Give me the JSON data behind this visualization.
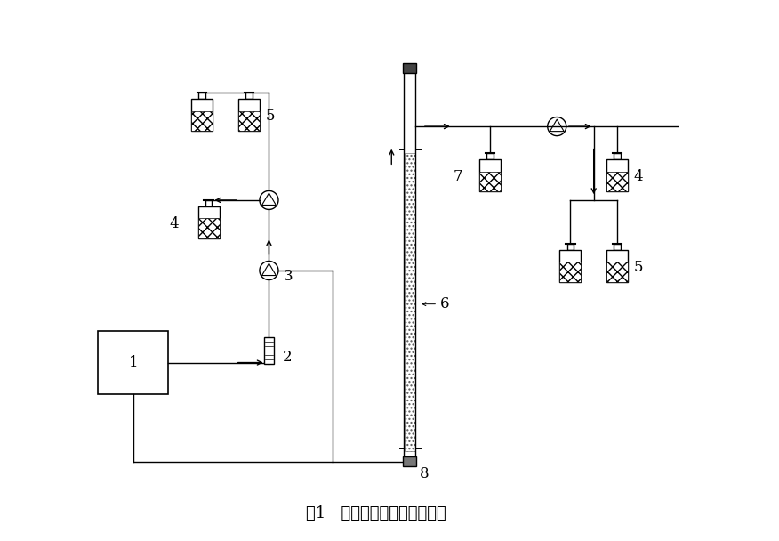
{
  "title": "图1   污泥臭氧化试验装置示意",
  "bg_color": "#ffffff",
  "line_color": "#000000",
  "title_fontsize": 13,
  "label_fontsize": 12,
  "figsize": [
    8.76,
    6.08
  ],
  "dpi": 100,
  "xlim": [
    0,
    10
  ],
  "ylim": [
    0,
    8
  ]
}
